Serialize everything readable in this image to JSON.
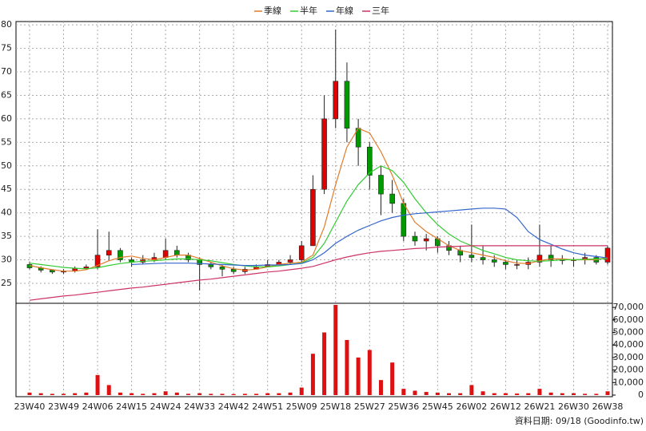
{
  "chart_data": {
    "type": "candlestick",
    "note": "資料日期: 09/18 (Goodinfo.tw)",
    "categories": [
      "23W40",
      null,
      null,
      "23W49",
      null,
      null,
      "24W06",
      null,
      null,
      "24W15",
      null,
      null,
      "24W24",
      null,
      null,
      "24W33",
      null,
      null,
      "24W42",
      null,
      null,
      "24W51",
      null,
      null,
      "25W09",
      null,
      null,
      "25W18",
      null,
      null,
      "25W27",
      null,
      null,
      "25W36",
      null,
      null,
      "25W45",
      null,
      null,
      "26W02",
      null,
      null,
      "26W12",
      null,
      null,
      "26W21",
      null,
      null,
      "26W30",
      null,
      null,
      "26W38"
    ],
    "ohlc": {
      "up_color": "#e00000",
      "down_color": "#009900",
      "open": [
        29,
        28.3,
        27.8,
        27.4,
        27.6,
        28.2,
        28.5,
        31,
        32,
        30,
        29.5,
        30,
        30.5,
        32,
        31,
        30,
        29,
        28.5,
        28,
        27.5,
        28,
        28.5,
        29,
        29.5,
        30,
        33,
        45,
        60,
        68,
        58,
        54,
        48,
        44,
        42,
        35,
        34,
        34.5,
        33,
        32,
        31,
        30.5,
        30,
        29.5,
        29,
        29,
        29.5,
        31,
        30,
        30,
        30,
        30.5,
        29.5
      ],
      "high": [
        29.5,
        28.6,
        28,
        28,
        28.6,
        29,
        36.5,
        36,
        32.5,
        30.5,
        31,
        31.5,
        34.5,
        33,
        31.5,
        30.5,
        29.5,
        29,
        28.5,
        28.5,
        29,
        30,
        30,
        31,
        34,
        48,
        65,
        79,
        72,
        60,
        55,
        50,
        47,
        43,
        36,
        35.5,
        35,
        34,
        33,
        37.5,
        33,
        31,
        30,
        30,
        30.5,
        37.5,
        33,
        31,
        30.5,
        31.5,
        31,
        33
      ],
      "low": [
        28,
        27.3,
        27,
        27,
        27.3,
        27.8,
        28,
        30,
        29.5,
        28.5,
        29,
        29.5,
        30,
        30.5,
        29.5,
        23.5,
        28,
        26.5,
        27,
        27,
        28,
        28.5,
        29,
        29,
        29.5,
        33,
        44,
        58,
        55,
        50,
        45,
        39.5,
        40,
        34,
        33,
        32,
        31.5,
        31,
        29.5,
        29.5,
        29,
        28.5,
        28,
        28,
        28,
        28.5,
        28.5,
        29,
        28.5,
        29,
        29,
        29
      ],
      "close": [
        28.3,
        27.8,
        27.4,
        27.6,
        28.2,
        28.5,
        31,
        32,
        30,
        29.5,
        30,
        30.5,
        32,
        31,
        30,
        29,
        28.5,
        28,
        27.5,
        28,
        28.5,
        29,
        29.5,
        30,
        33,
        45,
        60,
        68,
        58,
        54,
        48,
        44,
        42,
        35,
        34,
        34.5,
        33,
        32,
        31,
        30.5,
        30,
        29.5,
        29,
        29,
        29.5,
        31,
        30,
        30,
        30,
        30.5,
        29.5,
        32.5
      ]
    },
    "series": [
      {
        "name": "季線",
        "color": "#e07b2a",
        "values": [
          28.8,
          28.3,
          27.9,
          27.6,
          27.6,
          27.9,
          28.8,
          29.8,
          30.5,
          30.8,
          30.3,
          30,
          30.5,
          31,
          31,
          30.3,
          29.5,
          28.7,
          28.1,
          27.8,
          28,
          28.5,
          29,
          29.3,
          29.5,
          31,
          37,
          46,
          54,
          58,
          57,
          53,
          48,
          42,
          38,
          36,
          34.5,
          33,
          32,
          31.5,
          31,
          30.5,
          29.8,
          29.3,
          29.2,
          29.8,
          30.2,
          30.2,
          30,
          30,
          30,
          30.5
        ]
      },
      {
        "name": "半年",
        "color": "#33cc33",
        "values": [
          29.3,
          29,
          28.7,
          28.4,
          28.2,
          28.1,
          28.3,
          28.8,
          29.2,
          29.5,
          29.7,
          29.8,
          30,
          30.2,
          30.2,
          30,
          29.8,
          29.4,
          29,
          28.7,
          28.5,
          28.5,
          28.7,
          29,
          29.3,
          30.5,
          33.5,
          38,
          42.5,
          46,
          48.5,
          50,
          49,
          46.5,
          43,
          40,
          37.5,
          35.5,
          34,
          33,
          32,
          31.3,
          30.5,
          30,
          29.8,
          29.7,
          29.8,
          30,
          30,
          30.1,
          30.2,
          30.2
        ]
      },
      {
        "name": "年線",
        "color": "#3366cc",
        "values": [
          null,
          null,
          null,
          null,
          null,
          null,
          null,
          null,
          null,
          29,
          29.1,
          29.2,
          29.3,
          29.3,
          29.3,
          29.2,
          29.1,
          29,
          28.9,
          28.8,
          28.8,
          28.9,
          28.9,
          29,
          29.2,
          30,
          31.5,
          33.5,
          35,
          36.3,
          37.3,
          38.3,
          39,
          39.5,
          39.8,
          40,
          40.2,
          40.4,
          40.6,
          40.8,
          41,
          41,
          40.8,
          39,
          36,
          34.3,
          33.3,
          32.3,
          31.5,
          31,
          30.7,
          30.4
        ]
      },
      {
        "name": "三年",
        "color": "#cc3366",
        "values": [
          21.4,
          21.7,
          22,
          22.3,
          22.5,
          22.8,
          23.1,
          23.4,
          23.7,
          24,
          24.2,
          24.5,
          24.8,
          25.1,
          25.4,
          25.7,
          25.9,
          26.2,
          26.5,
          26.8,
          27.1,
          27.4,
          27.6,
          27.9,
          28.2,
          28.6,
          29.3,
          30,
          30.6,
          31.1,
          31.5,
          31.8,
          32,
          32.2,
          32.4,
          32.5,
          32.7,
          32.8,
          32.9,
          33,
          33,
          33,
          33,
          33,
          33,
          33,
          33,
          33,
          33,
          33,
          33,
          33
        ]
      }
    ],
    "ylim": [
      20.75,
      80.7
    ],
    "yticks": [
      25,
      30,
      35,
      40,
      45,
      50,
      55,
      60,
      65,
      70,
      75,
      80
    ],
    "grid": true,
    "volume": {
      "color": "#dd1111",
      "ylim": [
        0,
        72000
      ],
      "yticks": [
        0,
        {
          "value": 10000,
          "label": "10,000"
        },
        {
          "value": 20000,
          "label": "20,000"
        },
        {
          "value": 30000,
          "label": "30,000"
        },
        {
          "value": 40000,
          "label": "40,000"
        },
        {
          "value": 50000,
          "label": "50,000"
        },
        {
          "value": 60000,
          "label": "60,000"
        },
        {
          "value": 70000,
          "label": "70,000"
        }
      ],
      "values": [
        2000,
        1500,
        1000,
        1000,
        1500,
        2000,
        16000,
        8000,
        2000,
        1500,
        1000,
        1500,
        3000,
        2000,
        1000,
        1500,
        1000,
        1000,
        800,
        1000,
        1000,
        1500,
        1500,
        2000,
        6000,
        33000,
        50000,
        72000,
        44000,
        30000,
        36000,
        12000,
        26000,
        5000,
        3500,
        2500,
        2000,
        1500,
        1500,
        8000,
        3000,
        1500,
        1500,
        1200,
        1500,
        5000,
        2000,
        1500,
        1500,
        1000,
        1000,
        3000
      ]
    }
  }
}
